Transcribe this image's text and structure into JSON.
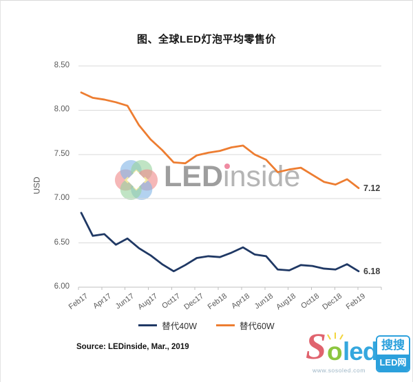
{
  "chart_data": {
    "type": "line",
    "title": "图、全球LED灯泡平均零售价",
    "ylabel": "USD",
    "ylim": [
      6.0,
      8.5
    ],
    "grid": true,
    "legend_position": "bottom",
    "grid_color": "#d9d9d9",
    "axis_color": "#bfbfbf",
    "y_tick_labels": [
      "8.50",
      "8.00",
      "7.50",
      "7.00",
      "6.50",
      "6.00"
    ],
    "x_tick_labels": [
      "Feb17",
      "Apr17",
      "Jun17",
      "Aug17",
      "Oct17",
      "Dec17",
      "Feb18",
      "Apr18",
      "Jun18",
      "Aug18",
      "Oct18",
      "Dec18",
      "Feb19"
    ],
    "x": [
      "Feb17",
      "Mar17",
      "Apr17",
      "May17",
      "Jun17",
      "Jul17",
      "Aug17",
      "Sep17",
      "Oct17",
      "Nov17",
      "Dec17",
      "Jan18",
      "Feb18",
      "Mar18",
      "Apr18",
      "May18",
      "Jun18",
      "Jul18",
      "Aug18",
      "Sep18",
      "Oct18",
      "Nov18",
      "Dec18",
      "Jan19",
      "Feb19"
    ],
    "series": [
      {
        "name": "替代40W",
        "color": "#1f3864",
        "end_label": "6.18",
        "values": [
          6.84,
          6.58,
          6.6,
          6.48,
          6.55,
          6.44,
          6.36,
          6.26,
          6.18,
          6.25,
          6.33,
          6.35,
          6.34,
          6.39,
          6.45,
          6.37,
          6.35,
          6.2,
          6.19,
          6.25,
          6.24,
          6.21,
          6.2,
          6.26,
          6.18
        ]
      },
      {
        "name": "替代60W",
        "color": "#ed7d31",
        "end_label": "7.12",
        "values": [
          8.2,
          8.14,
          8.12,
          8.09,
          8.05,
          7.83,
          7.67,
          7.55,
          7.41,
          7.4,
          7.49,
          7.52,
          7.54,
          7.58,
          7.6,
          7.5,
          7.44,
          7.3,
          7.33,
          7.35,
          7.27,
          7.19,
          7.16,
          7.22,
          7.12
        ]
      }
    ]
  },
  "source": "Source: LEDinside, Mar., 2019",
  "watermark": {
    "text_bold": "LED",
    "text_i": "i",
    "text_rest": "nside"
  },
  "site_logo": {
    "s": "S",
    "o": "o",
    "led": "led",
    "url": "www.sosoled.com",
    "cn_top": "搜搜",
    "cn_bottom": "LED网"
  }
}
